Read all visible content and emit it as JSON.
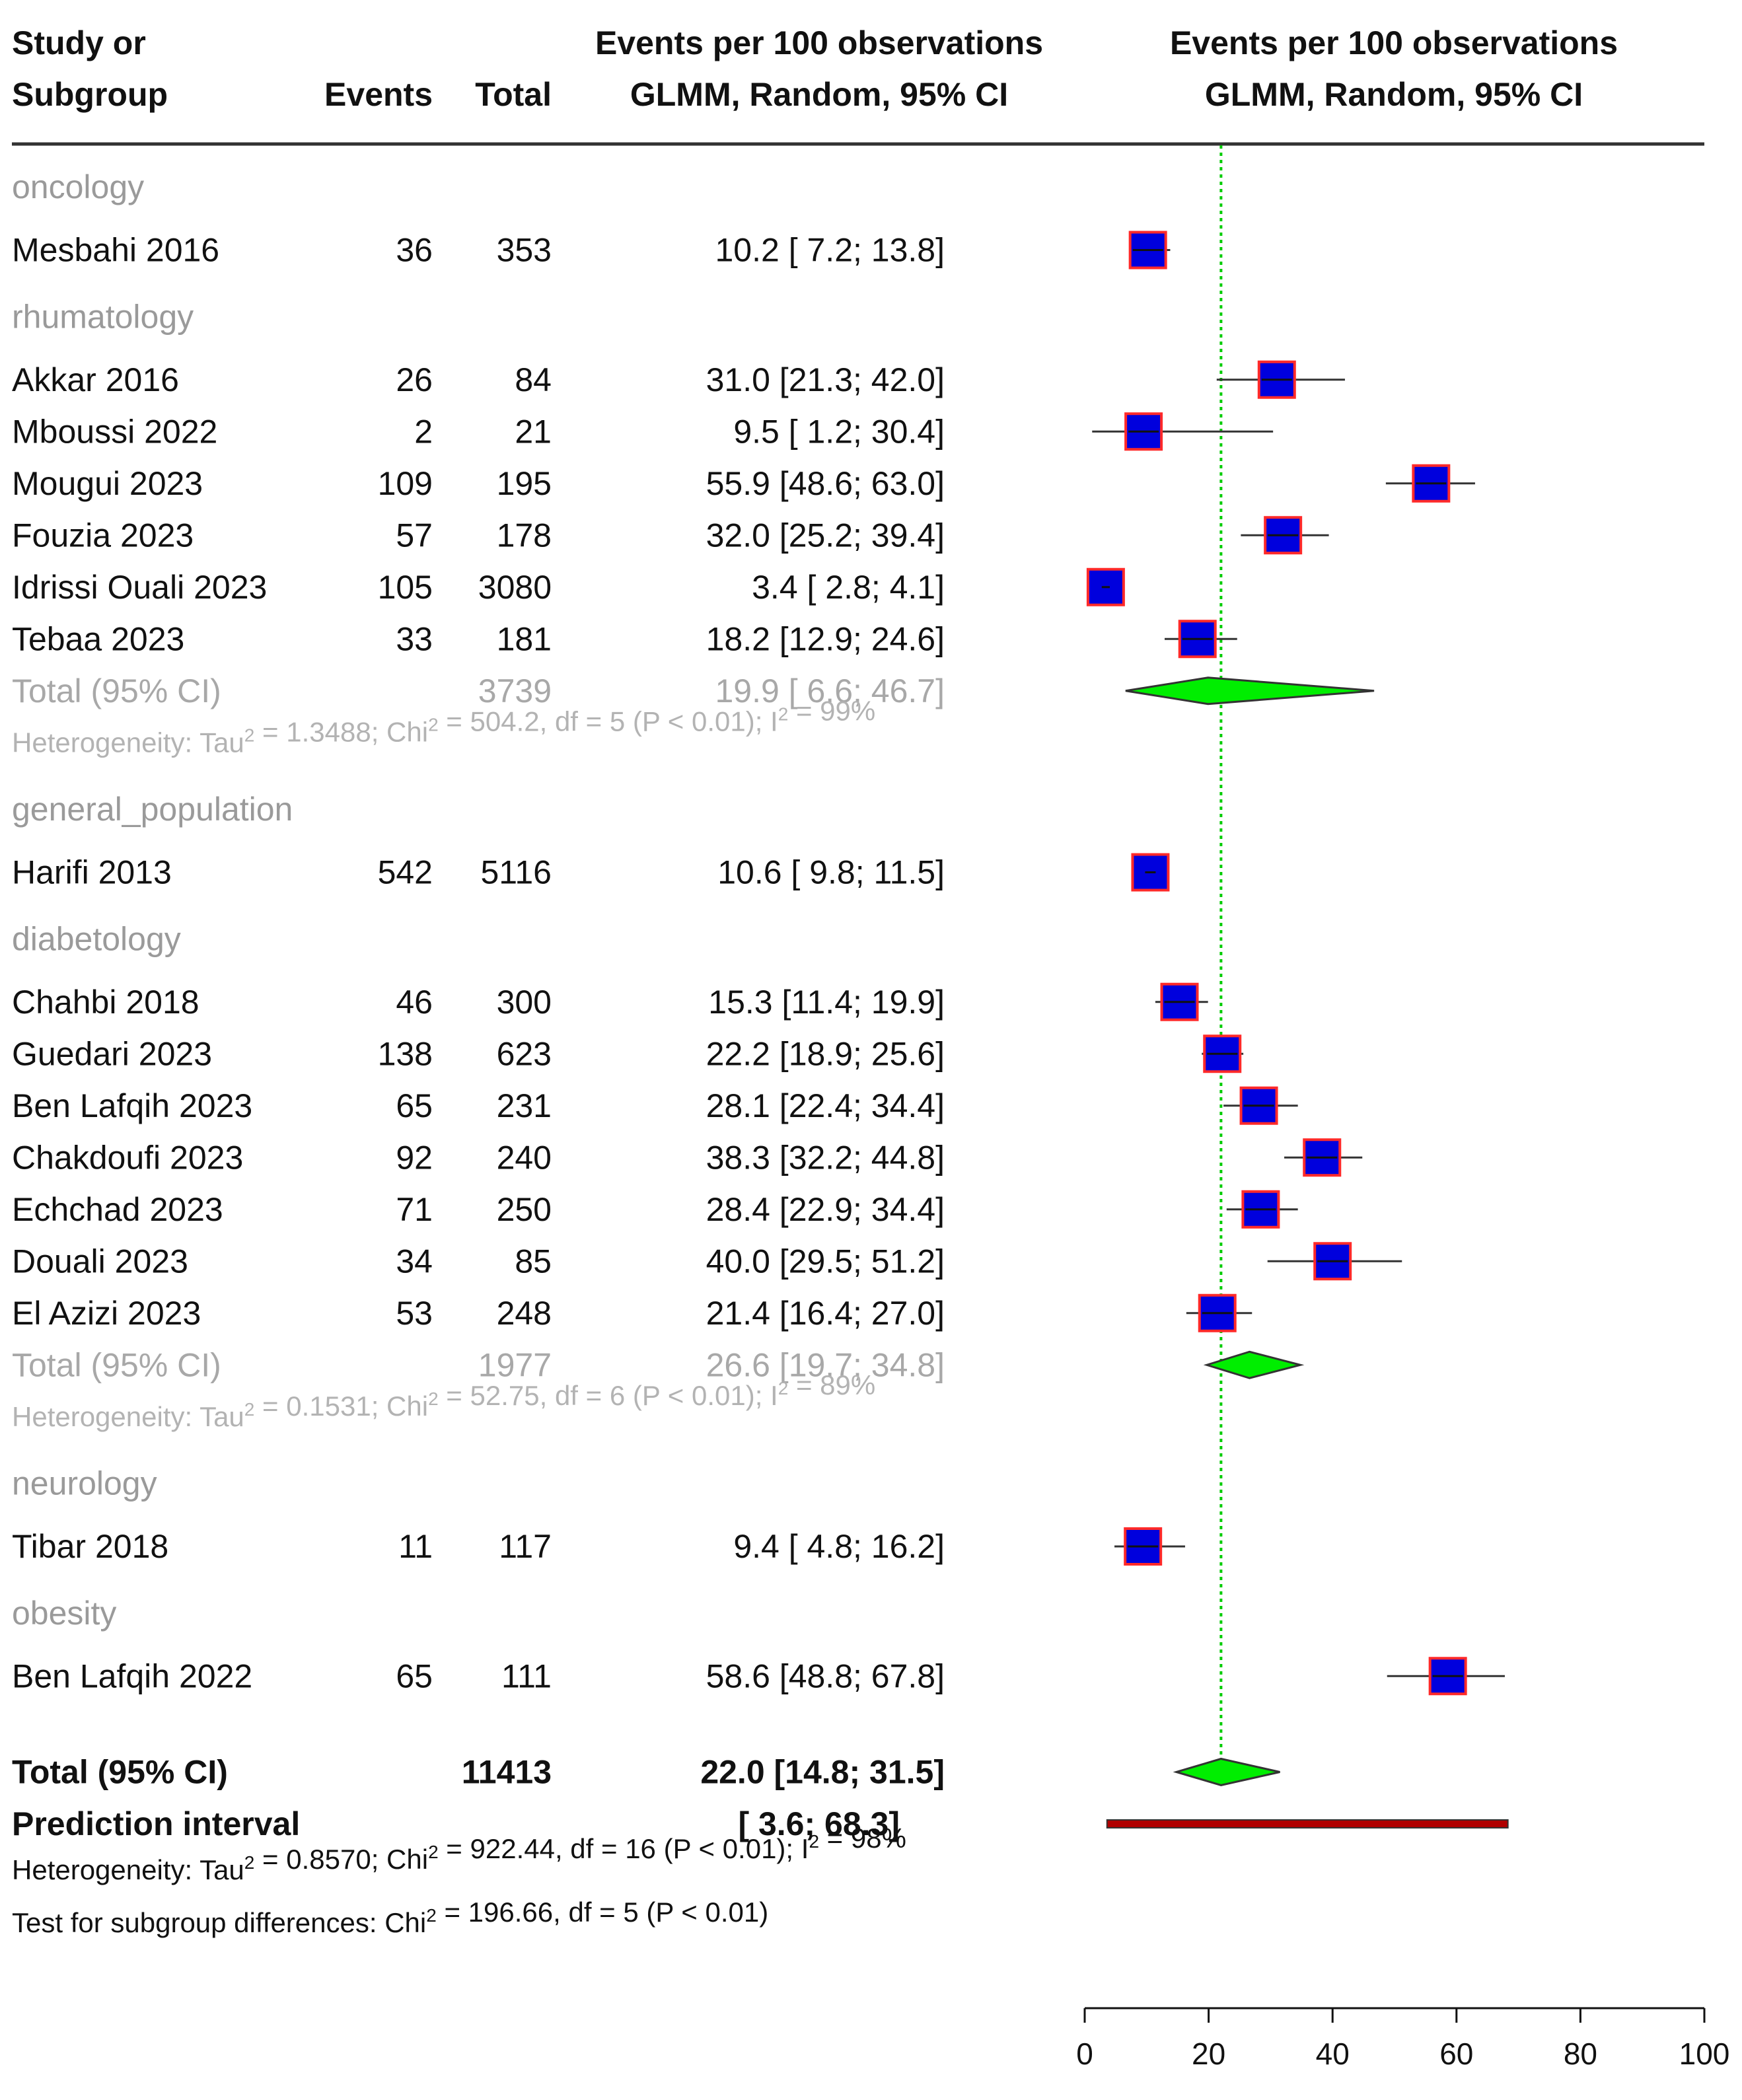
{
  "chart_data": {
    "type": "forest",
    "title": "Events per 100 observations",
    "columns": {
      "study": "Study or",
      "study2": "Subgroup",
      "events": "Events",
      "total": "Total",
      "effect": "Events per 100 observations",
      "method": "GLMM, Random, 95% CI",
      "plot_title": "Events per 100 observations",
      "plot_method": "GLMM, Random, 95% CI"
    },
    "xlim": [
      0,
      100
    ],
    "ticks": [
      "0",
      "20",
      "40",
      "60",
      "80",
      "100"
    ],
    "tick_values": [
      0,
      20,
      40,
      60,
      80,
      100
    ],
    "reference_line": 22.0,
    "colors": {
      "square": "#0000dd",
      "square_border": "#ff2a2a",
      "subtotal_diamond": "#00ee00",
      "prediction_bar": "#b00000",
      "reference": "#00cc00"
    },
    "groups": [
      {
        "name": "oncology",
        "studies": [
          {
            "study": "Mesbahi 2016",
            "events": "36",
            "total": "353",
            "ci_text": "10.2 [ 7.2; 13.8]",
            "est": 10.2,
            "lo": 7.2,
            "hi": 13.8
          }
        ]
      },
      {
        "name": "rhumatology",
        "studies": [
          {
            "study": "Akkar 2016",
            "events": "26",
            "total": "84",
            "ci_text": "31.0 [21.3; 42.0]",
            "est": 31.0,
            "lo": 21.3,
            "hi": 42.0
          },
          {
            "study": "Mboussi 2022",
            "events": "2",
            "total": "21",
            "ci_text": "9.5 [ 1.2; 30.4]",
            "est": 9.5,
            "lo": 1.2,
            "hi": 30.4
          },
          {
            "study": "Mougui 2023",
            "events": "109",
            "total": "195",
            "ci_text": "55.9 [48.6; 63.0]",
            "est": 55.9,
            "lo": 48.6,
            "hi": 63.0
          },
          {
            "study": "Fouzia 2023",
            "events": "57",
            "total": "178",
            "ci_text": "32.0 [25.2; 39.4]",
            "est": 32.0,
            "lo": 25.2,
            "hi": 39.4
          },
          {
            "study": "Idrissi Ouali 2023",
            "events": "105",
            "total": "3080",
            "ci_text": "3.4 [ 2.8; 4.1]",
            "est": 3.4,
            "lo": 2.8,
            "hi": 4.1
          },
          {
            "study": "Tebaa 2023",
            "events": "33",
            "total": "181",
            "ci_text": "18.2 [12.9; 24.6]",
            "est": 18.2,
            "lo": 12.9,
            "hi": 24.6
          }
        ],
        "subtotal": {
          "label": "Total (95% CI)",
          "total": "3739",
          "ci_text": "19.9 [ 6.6; 46.7]",
          "est": 19.9,
          "lo": 6.6,
          "hi": 46.7
        },
        "heterogeneity": {
          "pre": "Heterogeneity: Tau",
          "sup1": "2",
          "mid": " = 1.3488; Chi",
          "sup2": "2",
          "mid2": " = 504.2, df = 5 (P < 0.01); I",
          "sup3": "2",
          "post": " = 99%"
        }
      },
      {
        "name": "general_population",
        "studies": [
          {
            "study": "Harifi 2013",
            "events": "542",
            "total": "5116",
            "ci_text": "10.6 [ 9.8; 11.5]",
            "est": 10.6,
            "lo": 9.8,
            "hi": 11.5
          }
        ]
      },
      {
        "name": "diabetology",
        "studies": [
          {
            "study": "Chahbi 2018",
            "events": "46",
            "total": "300",
            "ci_text": "15.3 [11.4; 19.9]",
            "est": 15.3,
            "lo": 11.4,
            "hi": 19.9
          },
          {
            "study": "Guedari 2023",
            "events": "138",
            "total": "623",
            "ci_text": "22.2 [18.9; 25.6]",
            "est": 22.2,
            "lo": 18.9,
            "hi": 25.6
          },
          {
            "study": "Ben Lafqih 2023",
            "events": "65",
            "total": "231",
            "ci_text": "28.1 [22.4; 34.4]",
            "est": 28.1,
            "lo": 22.4,
            "hi": 34.4
          },
          {
            "study": "Chakdoufi 2023",
            "events": "92",
            "total": "240",
            "ci_text": "38.3 [32.2; 44.8]",
            "est": 38.3,
            "lo": 32.2,
            "hi": 44.8
          },
          {
            "study": "Echchad 2023",
            "events": "71",
            "total": "250",
            "ci_text": "28.4 [22.9; 34.4]",
            "est": 28.4,
            "lo": 22.9,
            "hi": 34.4
          },
          {
            "study": "Douali 2023",
            "events": "34",
            "total": "85",
            "ci_text": "40.0 [29.5; 51.2]",
            "est": 40.0,
            "lo": 29.5,
            "hi": 51.2
          },
          {
            "study": "El Azizi 2023",
            "events": "53",
            "total": "248",
            "ci_text": "21.4 [16.4; 27.0]",
            "est": 21.4,
            "lo": 16.4,
            "hi": 27.0
          }
        ],
        "subtotal": {
          "label": "Total (95% CI)",
          "total": "1977",
          "ci_text": "26.6 [19.7; 34.8]",
          "est": 26.6,
          "lo": 19.7,
          "hi": 34.8
        },
        "heterogeneity": {
          "pre": "Heterogeneity: Tau",
          "sup1": "2",
          "mid": " = 0.1531; Chi",
          "sup2": "2",
          "mid2": " = 52.75, df = 6 (P < 0.01); I",
          "sup3": "2",
          "post": " = 89%"
        }
      },
      {
        "name": "neurology",
        "studies": [
          {
            "study": "Tibar 2018",
            "events": "11",
            "total": "117",
            "ci_text": "9.4 [ 4.8; 16.2]",
            "est": 9.4,
            "lo": 4.8,
            "hi": 16.2
          }
        ]
      },
      {
        "name": "obesity",
        "studies": [
          {
            "study": "Ben Lafqih 2022",
            "events": "65",
            "total": "111",
            "ci_text": "58.6 [48.8; 67.8]",
            "est": 58.6,
            "lo": 48.8,
            "hi": 67.8
          }
        ]
      }
    ],
    "overall": {
      "label": "Total (95% CI)",
      "total": "11413",
      "ci_text": "22.0 [14.8; 31.5]",
      "est": 22.0,
      "lo": 14.8,
      "hi": 31.5
    },
    "prediction": {
      "label": "Prediction interval",
      "ci_text": "[ 3.6; 68.3]",
      "lo": 3.6,
      "hi": 68.3
    },
    "overall_heterogeneity": {
      "pre": "Heterogeneity: Tau",
      "sup1": "2",
      "mid": " = 0.8570; Chi",
      "sup2": "2",
      "mid2": " = 922.44, df = 16 (P < 0.01); I",
      "sup3": "2",
      "post": " = 98%"
    },
    "subgroup_test": {
      "pre": "Test for subgroup differences: Chi",
      "sup1": "2",
      "post": " = 196.66, df = 5 (P < 0.01)"
    }
  }
}
